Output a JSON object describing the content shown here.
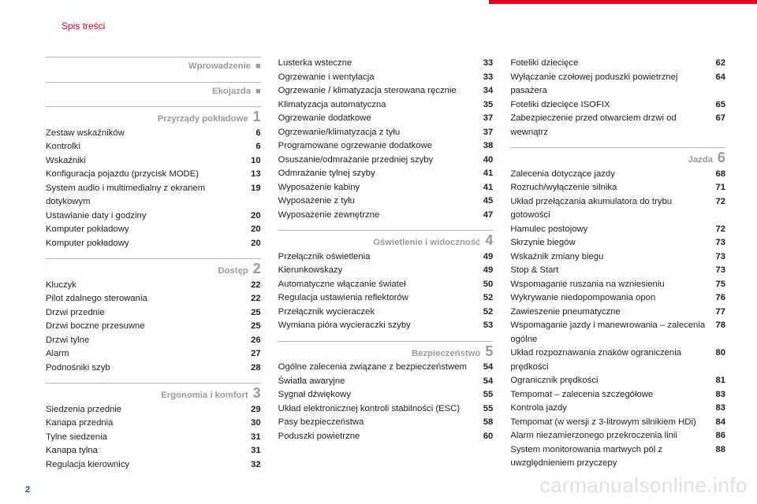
{
  "header": {
    "title": "Spis treści"
  },
  "page_number": "2",
  "watermark": "carmanualsonline.info",
  "colors": {
    "accent": "#e2001a",
    "section_gray": "#9a9a9a",
    "rule_gray": "#b5b5b5",
    "text": "#222222",
    "pagenum": "#1a4aa0",
    "background": "#ffffff"
  },
  "columns": [
    {
      "blocks": [
        {
          "type": "section",
          "title": "Wprowadzenie",
          "marker": "■"
        },
        {
          "type": "section",
          "title": "Ekojazda",
          "marker": "■"
        },
        {
          "type": "section",
          "title": "Przyrządy pokładowe",
          "marker": "1"
        },
        {
          "type": "entry",
          "title": "Zestaw wskaźników",
          "page": "6"
        },
        {
          "type": "entry",
          "title": "Kontrolki",
          "page": "6"
        },
        {
          "type": "entry",
          "title": "Wskaźniki",
          "page": "10"
        },
        {
          "type": "entry",
          "title": "Konfiguracja pojazdu (przycisk MODE)",
          "page": "13"
        },
        {
          "type": "entry",
          "title": "System audio i multimedialny z ekranem dotykowym",
          "page": "19"
        },
        {
          "type": "entry",
          "title": "Ustawianie daty i godziny",
          "page": "20"
        },
        {
          "type": "entry",
          "title": "Komputer pokładowy",
          "page": "20"
        },
        {
          "type": "entry",
          "title": "Komputer pokładowy",
          "page": "20"
        },
        {
          "type": "section",
          "title": "Dostęp",
          "marker": "2"
        },
        {
          "type": "entry",
          "title": "Kluczyk",
          "page": "22"
        },
        {
          "type": "entry",
          "title": "Pilot zdalnego sterowania",
          "page": "22"
        },
        {
          "type": "entry",
          "title": "Drzwi przednie",
          "page": "25"
        },
        {
          "type": "entry",
          "title": "Drzwi boczne przesuwne",
          "page": "25"
        },
        {
          "type": "entry",
          "title": "Drzwi tylne",
          "page": "26"
        },
        {
          "type": "entry",
          "title": "Alarm",
          "page": "27"
        },
        {
          "type": "entry",
          "title": "Podnośniki szyb",
          "page": "28"
        },
        {
          "type": "section",
          "title": "Ergonomia i komfort",
          "marker": "3"
        },
        {
          "type": "entry",
          "title": "Siedzenia przednie",
          "page": "29"
        },
        {
          "type": "entry",
          "title": "Kanapa przednia",
          "page": "30"
        },
        {
          "type": "entry",
          "title": "Tylne siedzenia",
          "page": "31"
        },
        {
          "type": "entry",
          "title": "Kanapa tylna",
          "page": "31"
        },
        {
          "type": "entry",
          "title": "Regulacja kierownicy",
          "page": "32"
        }
      ]
    },
    {
      "blocks": [
        {
          "type": "entry",
          "title": "Lusterka wsteczne",
          "page": "33"
        },
        {
          "type": "entry",
          "title": "Ogrzewanie i wentylacja",
          "page": "33"
        },
        {
          "type": "entry",
          "title": "Ogrzewanie / klimatyzacja sterowana ręcznie",
          "page": "34"
        },
        {
          "type": "entry",
          "title": "Klimatyzacja automatyczna",
          "page": "35"
        },
        {
          "type": "entry",
          "title": "Ogrzewanie dodatkowe",
          "page": "37"
        },
        {
          "type": "entry",
          "title": "Ogrzewanie/klimatyzacja z tyłu",
          "page": "37"
        },
        {
          "type": "entry",
          "title": "Programowane ogrzewanie dodatkowe",
          "page": "38"
        },
        {
          "type": "entry",
          "title": "Osuszanie/odmrażanie przedniej szyby",
          "page": "40"
        },
        {
          "type": "entry",
          "title": "Odmrażanie tylnej szyby",
          "page": "41"
        },
        {
          "type": "entry",
          "title": "Wyposażenie kabiny",
          "page": "41"
        },
        {
          "type": "entry",
          "title": "Wyposażenie z tyłu",
          "page": "45"
        },
        {
          "type": "entry",
          "title": "Wyposażenie zewnętrzne",
          "page": "47"
        },
        {
          "type": "section",
          "title": "Oświetlenie i widoczność",
          "marker": "4"
        },
        {
          "type": "entry",
          "title": "Przełącznik oświetlenia",
          "page": "49"
        },
        {
          "type": "entry",
          "title": "Kierunkowskazy",
          "page": "49"
        },
        {
          "type": "entry",
          "title": "Automatyczne włączanie świateł",
          "page": "50"
        },
        {
          "type": "entry",
          "title": "Regulacja ustawienia reflektorów",
          "page": "52"
        },
        {
          "type": "entry",
          "title": "Przełącznik wycieraczek",
          "page": "52"
        },
        {
          "type": "entry",
          "title": "Wymiana pióra wycieraczki szyby",
          "page": "53"
        },
        {
          "type": "section",
          "title": "Bezpieczeństwo",
          "marker": "5"
        },
        {
          "type": "entry",
          "title": "Ogólne zalecenia związane z bezpieczeństwem",
          "page": "54"
        },
        {
          "type": "entry",
          "title": "Światła awaryjne",
          "page": "54"
        },
        {
          "type": "entry",
          "title": "Sygnał dźwiękowy",
          "page": "55"
        },
        {
          "type": "entry",
          "title": "Układ elektronicznej kontroli stabilności (ESC)",
          "page": "55"
        },
        {
          "type": "entry",
          "title": "Pasy bezpieczeństwa",
          "page": "58"
        },
        {
          "type": "entry",
          "title": "Poduszki powietrzne",
          "page": "60"
        }
      ]
    },
    {
      "blocks": [
        {
          "type": "entry",
          "title": "Foteliki dziecięce",
          "page": "62"
        },
        {
          "type": "entry",
          "title": "Wyłączanie czołowej poduszki powietrznej pasażera",
          "page": "64"
        },
        {
          "type": "entry",
          "title": "Foteliki dziecięce ISOFIX",
          "page": "65"
        },
        {
          "type": "entry",
          "title": "Zabezpieczenie przed otwarciem drzwi od wewnątrz",
          "page": "67"
        },
        {
          "type": "section",
          "title": "Jazda",
          "marker": "6"
        },
        {
          "type": "entry",
          "title": "Zalecenia dotyczące jazdy",
          "page": "68"
        },
        {
          "type": "entry",
          "title": "Rozruch/wyłączenie silnika",
          "page": "71"
        },
        {
          "type": "entry",
          "title": "Układ przełączania akumulatora do trybu gotowości",
          "page": "72"
        },
        {
          "type": "entry",
          "title": "Hamulec postojowy",
          "page": "72"
        },
        {
          "type": "entry",
          "title": "Skrzynie biegów",
          "page": "73"
        },
        {
          "type": "entry",
          "title": "Wskaźnik zmiany biegu",
          "page": "73"
        },
        {
          "type": "entry",
          "title": "Stop & Start",
          "page": "73"
        },
        {
          "type": "entry",
          "title": "Wspomaganie ruszania na wzniesieniu",
          "page": "75"
        },
        {
          "type": "entry",
          "title": "Wykrywanie niedopompowania opon",
          "page": "76"
        },
        {
          "type": "entry",
          "title": "Zawieszenie pneumatyczne",
          "page": "77"
        },
        {
          "type": "entry",
          "title": "Wspomaganie jazdy i manewrowania – zalecenia ogólne",
          "page": "78"
        },
        {
          "type": "entry",
          "title": "Układ rozpoznawania znaków ograniczenia prędkości",
          "page": "80"
        },
        {
          "type": "entry",
          "title": "Ogranicznik prędkości",
          "page": "81"
        },
        {
          "type": "entry",
          "title": "Tempomat – zalecenia szczegółowe",
          "page": "83"
        },
        {
          "type": "entry",
          "title": "Kontrola jazdy",
          "page": "83"
        },
        {
          "type": "entry",
          "title": "Tempomat (w wersji z 3-litrowym silnikiem HDi)",
          "page": "84"
        },
        {
          "type": "entry",
          "title": "Alarm niezamierzonego przekroczenia linii",
          "page": "86"
        },
        {
          "type": "entry",
          "title": "System monitorowania martwych pól z uwzględnieniem przyczepy",
          "page": "88"
        }
      ]
    }
  ]
}
